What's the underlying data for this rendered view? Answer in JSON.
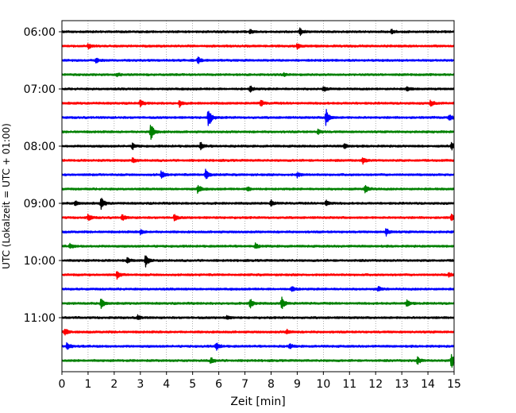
{
  "chart_data": {
    "type": "line",
    "title": "",
    "xlabel": "Zeit  [min]",
    "ylabel": "UTC (Lokalzeit = UTC + 01:00)",
    "xlim": [
      0,
      15
    ],
    "x_ticks": [
      "0",
      "1",
      "2",
      "3",
      "4",
      "5",
      "6",
      "7",
      "8",
      "9",
      "10",
      "11",
      "12",
      "13",
      "14",
      "15"
    ],
    "y_hour_labels": [
      "06:00",
      "07:00",
      "08:00",
      "09:00",
      "10:00",
      "11:00"
    ],
    "grid": {
      "vertical_dotted": true
    },
    "trace_colors": [
      "#000000",
      "#ff0000",
      "#0000ff",
      "#008000"
    ],
    "traces": [
      {
        "start": "06:00",
        "events": [
          {
            "t": 7.2,
            "amp": 3
          },
          {
            "t": 9.1,
            "amp": 4
          },
          {
            "t": 12.6,
            "amp": 3
          }
        ]
      },
      {
        "start": "06:15",
        "events": [
          {
            "t": 1.0,
            "amp": 3
          },
          {
            "t": 9.0,
            "amp": 3
          }
        ]
      },
      {
        "start": "06:30",
        "events": [
          {
            "t": 1.3,
            "amp": 3
          },
          {
            "t": 5.2,
            "amp": 4
          }
        ]
      },
      {
        "start": "06:45",
        "events": [
          {
            "t": 2.1,
            "amp": 2
          },
          {
            "t": 8.5,
            "amp": 2
          }
        ]
      },
      {
        "start": "07:00",
        "events": [
          {
            "t": 7.2,
            "amp": 4
          },
          {
            "t": 10.0,
            "amp": 3
          },
          {
            "t": 13.2,
            "amp": 3
          }
        ]
      },
      {
        "start": "07:15",
        "events": [
          {
            "t": 3.0,
            "amp": 4
          },
          {
            "t": 4.5,
            "amp": 4
          },
          {
            "t": 7.6,
            "amp": 4
          },
          {
            "t": 14.1,
            "amp": 4
          }
        ]
      },
      {
        "start": "07:30",
        "events": [
          {
            "t": 5.6,
            "amp": 14
          },
          {
            "t": 10.1,
            "amp": 11
          },
          {
            "t": 14.8,
            "amp": 4
          }
        ]
      },
      {
        "start": "07:45",
        "events": [
          {
            "t": 3.4,
            "amp": 11
          },
          {
            "t": 9.8,
            "amp": 3
          }
        ]
      },
      {
        "start": "08:00",
        "events": [
          {
            "t": 2.7,
            "amp": 4
          },
          {
            "t": 5.3,
            "amp": 5
          },
          {
            "t": 10.8,
            "amp": 3
          },
          {
            "t": 14.9,
            "amp": 5
          }
        ]
      },
      {
        "start": "08:15",
        "events": [
          {
            "t": 2.7,
            "amp": 3
          },
          {
            "t": 11.5,
            "amp": 4
          }
        ]
      },
      {
        "start": "08:30",
        "events": [
          {
            "t": 3.8,
            "amp": 5
          },
          {
            "t": 5.5,
            "amp": 8
          },
          {
            "t": 9.0,
            "amp": 3
          }
        ]
      },
      {
        "start": "08:45",
        "events": [
          {
            "t": 5.2,
            "amp": 6
          },
          {
            "t": 7.1,
            "amp": 3
          },
          {
            "t": 11.6,
            "amp": 6
          }
        ]
      },
      {
        "start": "09:00",
        "events": [
          {
            "t": 0.5,
            "amp": 3
          },
          {
            "t": 1.5,
            "amp": 8
          },
          {
            "t": 8.0,
            "amp": 4
          },
          {
            "t": 10.1,
            "amp": 4
          }
        ]
      },
      {
        "start": "09:15",
        "events": [
          {
            "t": 1.0,
            "amp": 5
          },
          {
            "t": 2.3,
            "amp": 4
          },
          {
            "t": 4.3,
            "amp": 4
          },
          {
            "t": 14.9,
            "amp": 5
          }
        ]
      },
      {
        "start": "09:30",
        "events": [
          {
            "t": 3.0,
            "amp": 3
          },
          {
            "t": 12.4,
            "amp": 5
          }
        ]
      },
      {
        "start": "09:45",
        "events": [
          {
            "t": 0.3,
            "amp": 3
          },
          {
            "t": 7.4,
            "amp": 3
          }
        ]
      },
      {
        "start": "10:00",
        "events": [
          {
            "t": 2.5,
            "amp": 3
          },
          {
            "t": 3.2,
            "amp": 8
          }
        ]
      },
      {
        "start": "10:15",
        "events": [
          {
            "t": 2.1,
            "amp": 5
          },
          {
            "t": 14.8,
            "amp": 3
          }
        ]
      },
      {
        "start": "10:30",
        "events": [
          {
            "t": 8.8,
            "amp": 4
          },
          {
            "t": 12.1,
            "amp": 3
          }
        ]
      },
      {
        "start": "10:45",
        "events": [
          {
            "t": 1.5,
            "amp": 7
          },
          {
            "t": 7.2,
            "amp": 6
          },
          {
            "t": 8.4,
            "amp": 8
          },
          {
            "t": 13.2,
            "amp": 5
          }
        ]
      },
      {
        "start": "11:00",
        "events": [
          {
            "t": 2.9,
            "amp": 3
          },
          {
            "t": 6.3,
            "amp": 2
          }
        ]
      },
      {
        "start": "11:15",
        "events": [
          {
            "t": 0.1,
            "amp": 5
          },
          {
            "t": 8.6,
            "amp": 3
          }
        ]
      },
      {
        "start": "11:30",
        "events": [
          {
            "t": 0.2,
            "amp": 5
          },
          {
            "t": 5.9,
            "amp": 5
          },
          {
            "t": 8.7,
            "amp": 3
          }
        ]
      },
      {
        "start": "11:45",
        "events": [
          {
            "t": 5.7,
            "amp": 4
          },
          {
            "t": 13.6,
            "amp": 5
          },
          {
            "t": 14.9,
            "amp": 10
          }
        ]
      }
    ]
  }
}
